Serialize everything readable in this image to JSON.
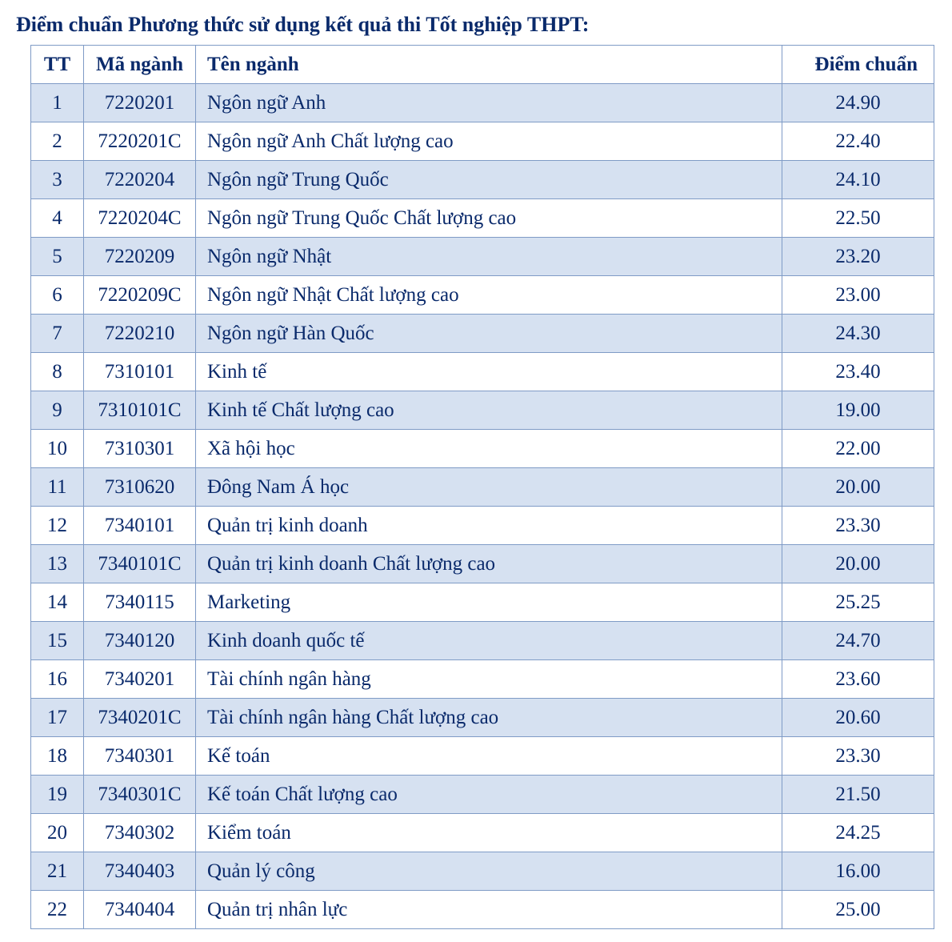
{
  "colors": {
    "text": "#0a2a6b",
    "border": "#7f9bc6",
    "row_odd_bg": "#d6e1f1",
    "row_even_bg": "#ffffff",
    "header_bg": "#ffffff"
  },
  "title": "Điểm chuẩn Phương thức sử dụng kết quả thi Tốt nghiệp THPT:",
  "table": {
    "columns": [
      {
        "key": "tt",
        "label": "TT"
      },
      {
        "key": "code",
        "label": "Mã ngành"
      },
      {
        "key": "name",
        "label": "Tên ngành"
      },
      {
        "key": "score",
        "label": "Điểm chuẩn"
      }
    ],
    "rows": [
      {
        "tt": "1",
        "code": "7220201",
        "name": "Ngôn ngữ Anh",
        "score": "24.90"
      },
      {
        "tt": "2",
        "code": "7220201C",
        "name": "Ngôn ngữ Anh Chất lượng cao",
        "score": "22.40"
      },
      {
        "tt": "3",
        "code": "7220204",
        "name": "Ngôn ngữ Trung Quốc",
        "score": "24.10"
      },
      {
        "tt": "4",
        "code": "7220204C",
        "name": "Ngôn ngữ Trung Quốc Chất lượng cao",
        "score": "22.50"
      },
      {
        "tt": "5",
        "code": "7220209",
        "name": "Ngôn ngữ Nhật",
        "score": "23.20"
      },
      {
        "tt": "6",
        "code": "7220209C",
        "name": "Ngôn ngữ Nhật Chất lượng cao",
        "score": "23.00"
      },
      {
        "tt": "7",
        "code": "7220210",
        "name": "Ngôn ngữ Hàn Quốc",
        "score": "24.30"
      },
      {
        "tt": "8",
        "code": "7310101",
        "name": "Kinh tế",
        "score": "23.40"
      },
      {
        "tt": "9",
        "code": "7310101C",
        "name": "Kinh tế Chất lượng cao",
        "score": "19.00"
      },
      {
        "tt": "10",
        "code": "7310301",
        "name": "Xã hội học",
        "score": "22.00"
      },
      {
        "tt": "11",
        "code": "7310620",
        "name": "Đông Nam Á học",
        "score": "20.00"
      },
      {
        "tt": "12",
        "code": "7340101",
        "name": "Quản trị kinh doanh",
        "score": "23.30"
      },
      {
        "tt": "13",
        "code": "7340101C",
        "name": "Quản trị kinh doanh Chất lượng cao",
        "score": "20.00"
      },
      {
        "tt": "14",
        "code": "7340115",
        "name": "Marketing",
        "score": "25.25"
      },
      {
        "tt": "15",
        "code": "7340120",
        "name": "Kinh doanh quốc tế",
        "score": "24.70"
      },
      {
        "tt": "16",
        "code": "7340201",
        "name": "Tài chính ngân hàng",
        "score": "23.60"
      },
      {
        "tt": "17",
        "code": "7340201C",
        "name": "Tài chính ngân hàng Chất lượng cao",
        "score": "20.60"
      },
      {
        "tt": "18",
        "code": "7340301",
        "name": "Kế toán",
        "score": "23.30"
      },
      {
        "tt": "19",
        "code": "7340301C",
        "name": "Kế toán Chất lượng cao",
        "score": "21.50"
      },
      {
        "tt": "20",
        "code": "7340302",
        "name": "Kiểm toán",
        "score": "24.25"
      },
      {
        "tt": "21",
        "code": "7340403",
        "name": "Quản lý công",
        "score": "16.00"
      },
      {
        "tt": "22",
        "code": "7340404",
        "name": "Quản trị nhân lực",
        "score": "25.00"
      }
    ]
  }
}
